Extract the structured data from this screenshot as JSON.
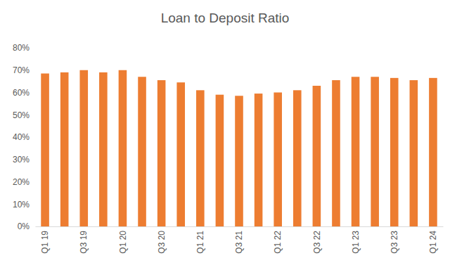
{
  "chart_data": {
    "type": "bar",
    "title": "Loan to Deposit Ratio",
    "categories": [
      "Q1 19",
      null,
      "Q3 19",
      null,
      "Q1 20",
      null,
      "Q3 20",
      null,
      "Q1 21",
      null,
      "Q3 21",
      null,
      "Q1 22",
      null,
      "Q3 22",
      null,
      "Q1 23",
      null,
      "Q3 23",
      null,
      "Q1 24"
    ],
    "values": [
      68.5,
      69,
      70,
      69,
      70,
      67,
      65.5,
      64.5,
      61,
      59,
      58.5,
      59.5,
      60,
      61,
      63,
      65.5,
      67,
      67,
      66.5,
      65.5,
      66.5
    ],
    "color": "#ed7d31",
    "ylim": [
      0,
      80
    ],
    "yticks": [
      {
        "value": 0,
        "label": "0%"
      },
      {
        "value": 10,
        "label": "10%"
      },
      {
        "value": 20,
        "label": "20%"
      },
      {
        "value": 30,
        "label": "30%"
      },
      {
        "value": 40,
        "label": "40%"
      },
      {
        "value": 50,
        "label": "50%"
      },
      {
        "value": 60,
        "label": "60%"
      },
      {
        "value": 70,
        "label": "70%"
      },
      {
        "value": 80,
        "label": "80%"
      }
    ],
    "grid": false
  }
}
